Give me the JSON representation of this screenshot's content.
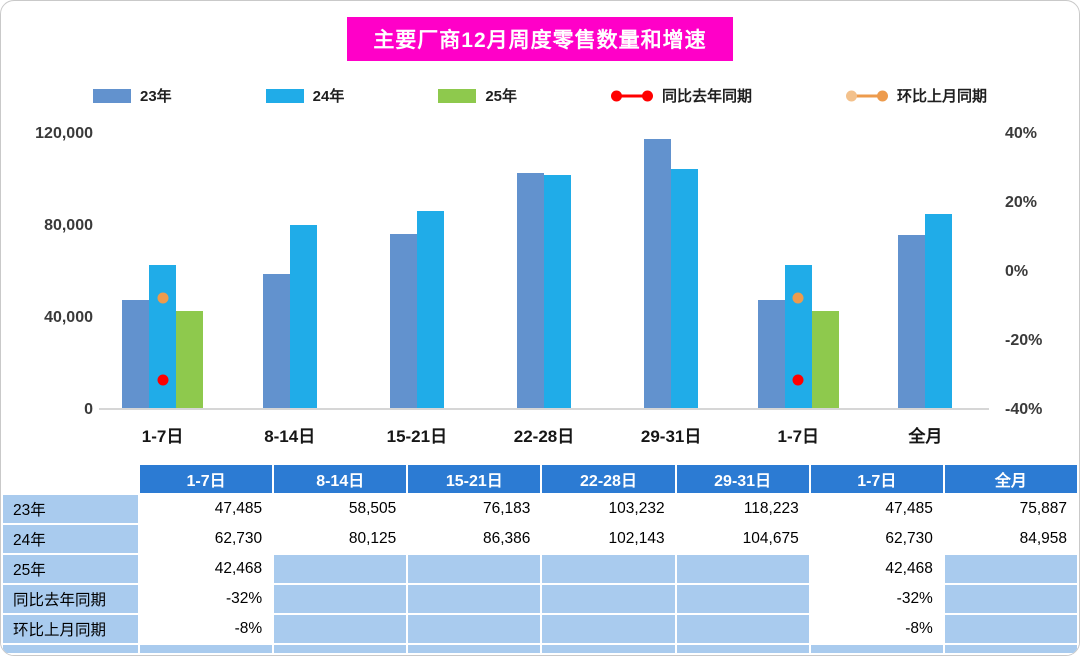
{
  "title": "主要厂商12月周度零售数量和增速",
  "legend": [
    {
      "label": "23年",
      "type": "square",
      "color": "#6292CE"
    },
    {
      "label": "24年",
      "type": "square",
      "color": "#20ACE8"
    },
    {
      "label": "25年",
      "type": "square",
      "color": "#8EC94D"
    },
    {
      "label": "同比去年同期",
      "type": "dot-line",
      "color": "#FF0000",
      "color2": "#FF0000"
    },
    {
      "label": "环比上月同期",
      "type": "dot-line",
      "color": "#ED9B4D",
      "color2": "#F3C18C"
    }
  ],
  "chart_data": {
    "type": "bar",
    "title": "主要厂商12月周度零售数量和增速",
    "categories": [
      "1-7日",
      "8-14日",
      "15-21日",
      "22-28日",
      "29-31日",
      "1-7日",
      "全月"
    ],
    "series": [
      {
        "name": "23年",
        "color": "#6292CE",
        "values": [
          47485,
          58505,
          76183,
          103232,
          118223,
          47485,
          75887
        ]
      },
      {
        "name": "24年",
        "color": "#20ACE8",
        "values": [
          62730,
          80125,
          86386,
          102143,
          104675,
          62730,
          84958
        ]
      },
      {
        "name": "25年",
        "color": "#8EC94D",
        "values": [
          42468,
          null,
          null,
          null,
          null,
          42468,
          null
        ]
      }
    ],
    "points": [
      {
        "name": "同比去年同期",
        "color": "#FF0000",
        "values": [
          -32,
          null,
          null,
          null,
          null,
          -32,
          null
        ]
      },
      {
        "name": "环比上月同期",
        "color": "#ED9B4D",
        "values": [
          -8,
          null,
          null,
          null,
          null,
          -8,
          null
        ]
      }
    ],
    "left_axis": {
      "min": 0,
      "max": 120000,
      "ticks": [
        "120,000",
        "80,000",
        "40,000",
        "0"
      ]
    },
    "right_axis": {
      "min": -40,
      "max": 40,
      "ticks": [
        "40%",
        "20%",
        "0%",
        "-20%",
        "-40%"
      ]
    },
    "grid": false,
    "legend_position": "top"
  },
  "table": {
    "header": [
      "",
      "1-7日",
      "8-14日",
      "15-21日",
      "22-28日",
      "29-31日",
      "1-7日",
      "全月"
    ],
    "rows": [
      {
        "label": "23年",
        "values": [
          "47,485",
          "58,505",
          "76,183",
          "103,232",
          "118,223",
          "47,485",
          "75,887"
        ]
      },
      {
        "label": "24年",
        "values": [
          "62,730",
          "80,125",
          "86,386",
          "102,143",
          "104,675",
          "62,730",
          "84,958"
        ]
      },
      {
        "label": "25年",
        "values": [
          "42,468",
          "",
          "",
          "",
          "",
          "42,468",
          ""
        ]
      },
      {
        "label": "同比去年同期",
        "values": [
          "-32%",
          "",
          "",
          "",
          "",
          "-32%",
          ""
        ]
      },
      {
        "label": "环比上月同期",
        "values": [
          "-8%",
          "",
          "",
          "",
          "",
          "-8%",
          ""
        ]
      }
    ]
  },
  "colors": {
    "title_bg": "#FF00C8",
    "header_blue": "#2C7BD3",
    "cell_light_blue": "#A9CBEE",
    "bar_23": "#6292CE",
    "bar_24": "#20ACE8",
    "bar_25": "#8EC94D",
    "yoy_red": "#FF0000",
    "mom_orange": "#ED9B4D"
  }
}
